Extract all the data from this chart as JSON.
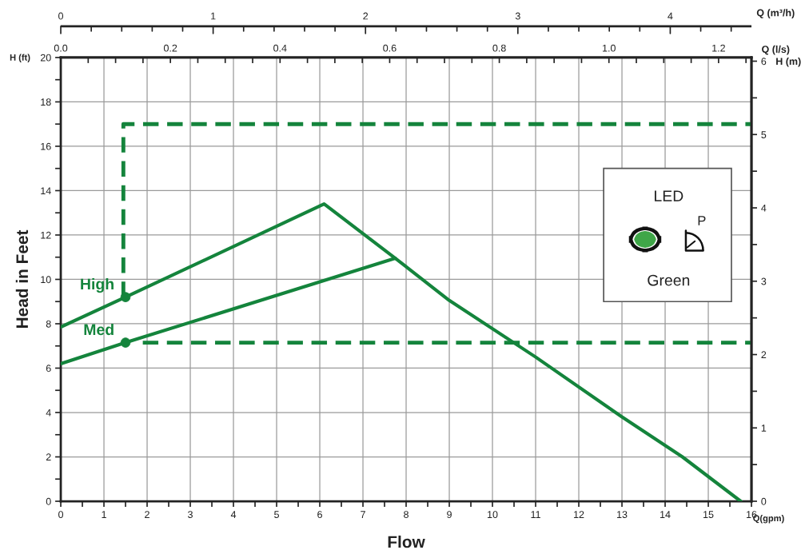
{
  "chart_data": {
    "type": "line",
    "xlabel": "Flow",
    "ylabel": "Head in Feet",
    "y2label": "H (m)",
    "x2label": "Q (l/s)",
    "xlim": [
      0,
      16
    ],
    "ylim": [
      0,
      20
    ],
    "y2lim": [
      0,
      6.05
    ],
    "x2lim": [
      0,
      1.26
    ],
    "xticks": [
      0,
      {
        "value": 0.5,
        "label": null
      },
      1,
      {
        "value": 1.5,
        "label": null
      },
      2,
      {
        "value": 2.5,
        "label": null
      },
      3,
      {
        "value": 3.5,
        "label": null
      },
      4,
      {
        "value": 4.5,
        "label": null
      },
      5,
      {
        "value": 5.5,
        "label": null
      },
      6,
      {
        "value": 6.5,
        "label": null
      },
      7,
      {
        "value": 7.5,
        "label": null
      },
      8,
      {
        "value": 8.5,
        "label": null
      },
      9,
      {
        "value": 9.5,
        "label": null
      },
      10,
      {
        "value": 10.5,
        "label": null
      },
      11,
      {
        "value": 11.5,
        "label": null
      },
      12,
      {
        "value": 12.5,
        "label": null
      },
      13,
      {
        "value": 13.5,
        "label": null
      },
      14,
      {
        "value": 14.5,
        "label": null
      },
      15,
      {
        "value": 15.5,
        "label": null
      },
      16
    ],
    "yticks": [
      0,
      {
        "value": 1,
        "label": null
      },
      2,
      {
        "value": 3,
        "label": null
      },
      4,
      {
        "value": 5,
        "label": null
      },
      6,
      {
        "value": 7,
        "label": null
      },
      8,
      {
        "value": 9,
        "label": null
      },
      10,
      {
        "value": 11,
        "label": null
      },
      12,
      {
        "value": 13,
        "label": null
      },
      14,
      {
        "value": 15,
        "label": null
      },
      16,
      {
        "value": 17,
        "label": null
      },
      18,
      {
        "value": 19,
        "label": null
      },
      20
    ],
    "y2ticks": [
      0,
      {
        "value": 0.5,
        "label": null
      },
      1,
      {
        "value": 1.5,
        "label": null
      },
      2,
      {
        "value": 2.5,
        "label": null
      },
      3,
      {
        "value": 3.5,
        "label": null
      },
      4,
      {
        "value": 4.5,
        "label": null
      },
      5,
      {
        "value": 5.5,
        "label": null
      },
      6
    ],
    "x2ticks": [
      {
        "value": 0,
        "label": "0.0"
      },
      {
        "value": 0.05,
        "label": null
      },
      {
        "value": 0.1,
        "label": null
      },
      {
        "value": 0.15,
        "label": null
      },
      {
        "value": 0.2,
        "label": "0.2"
      },
      {
        "value": 0.25,
        "label": null
      },
      {
        "value": 0.3,
        "label": null
      },
      {
        "value": 0.35,
        "label": null
      },
      {
        "value": 0.4,
        "label": "0.4"
      },
      {
        "value": 0.45,
        "label": null
      },
      {
        "value": 0.5,
        "label": null
      },
      {
        "value": 0.55,
        "label": null
      },
      {
        "value": 0.6,
        "label": "0.6"
      },
      {
        "value": 0.65,
        "label": null
      },
      {
        "value": 0.7,
        "label": null
      },
      {
        "value": 0.75,
        "label": null
      },
      {
        "value": 0.8,
        "label": "0.8"
      },
      {
        "value": 0.85,
        "label": null
      },
      {
        "value": 0.9,
        "label": null
      },
      {
        "value": 0.95,
        "label": null
      },
      {
        "value": 1.0,
        "label": "1.0"
      },
      {
        "value": 1.05,
        "label": null
      },
      {
        "value": 1.1,
        "label": null
      },
      {
        "value": 1.15,
        "label": null
      },
      {
        "value": 1.2,
        "label": "1.2"
      },
      {
        "value": 1.25,
        "label": null
      }
    ],
    "grid": true,
    "series": [
      {
        "name": "High",
        "color": "#14843c",
        "line_style": "solid",
        "x": [
          0,
          1.5,
          6.1,
          7.75,
          9.0,
          11.0,
          13.0,
          14.4,
          15.75
        ],
        "values": [
          7.85,
          9.2,
          13.4,
          10.95,
          9.05,
          6.5,
          3.8,
          2.0,
          0
        ]
      },
      {
        "name": "Med",
        "color": "#14843c",
        "line_style": "solid",
        "x": [
          0,
          1.5,
          7.75
        ],
        "values": [
          6.2,
          7.15,
          10.95
        ]
      },
      {
        "type": "scatter",
        "color": "#14843c",
        "marker": "circle",
        "x": [
          1.5,
          1.5
        ],
        "values": [
          9.2,
          7.15
        ]
      },
      {
        "color": "#14843c",
        "line_style": "dashed",
        "x": [
          1.45,
          1.45,
          16
        ],
        "values": [
          9.2,
          17,
          17
        ]
      },
      {
        "color": "#14843c",
        "line_style": "dashed",
        "x": [
          1.9,
          16
        ],
        "values": [
          7.15,
          7.15
        ]
      }
    ],
    "annotations": [
      "H (ft)",
      "Q(gpm)",
      "LED",
      "P",
      "Green",
      "Q (m³/h)",
      "0",
      "1",
      "2",
      "3",
      "4"
    ]
  }
}
